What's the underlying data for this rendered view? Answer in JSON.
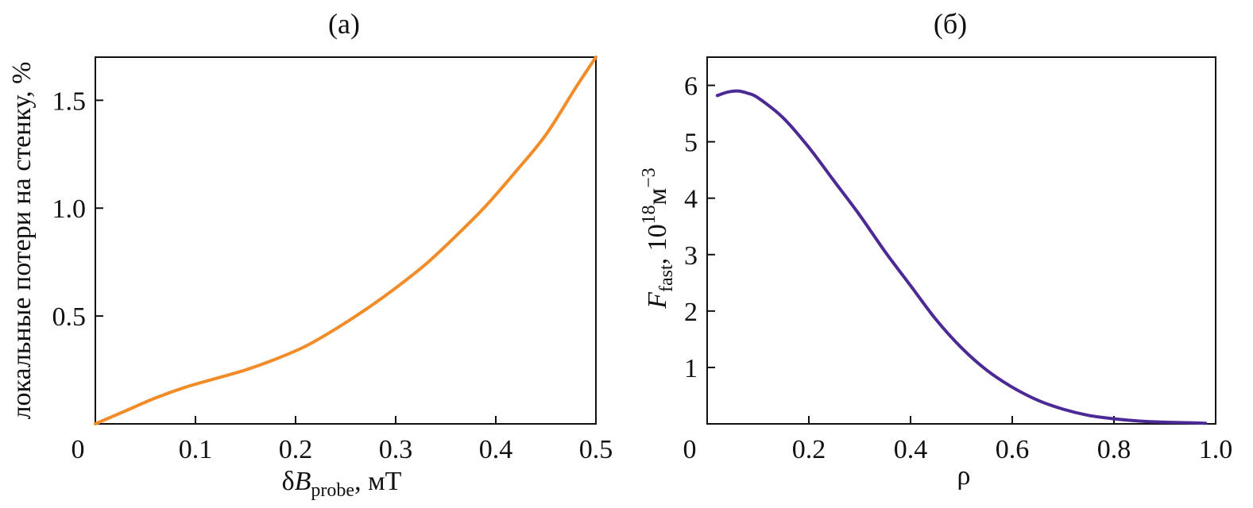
{
  "chart_data": [
    {
      "id": "a",
      "type": "line",
      "title": "(а)",
      "xlabel": {
        "main": "δ",
        "var": "B",
        "sub": "probe",
        "unit": ", мТ"
      },
      "ylabel": "локальные потери на стенку, %",
      "xlim": [
        0,
        0.5
      ],
      "ylim": [
        0,
        1.7
      ],
      "xticks": [
        {
          "v": 0,
          "label": "0"
        },
        {
          "v": 0.1,
          "label": "0.1"
        },
        {
          "v": 0.2,
          "label": "0.2"
        },
        {
          "v": 0.3,
          "label": "0.3"
        },
        {
          "v": 0.4,
          "label": "0.4"
        },
        {
          "v": 0.5,
          "label": "0.5"
        }
      ],
      "yticks": [
        {
          "v": 0.5,
          "label": "0.5"
        },
        {
          "v": 1.0,
          "label": "1.0"
        },
        {
          "v": 1.5,
          "label": "1.5"
        }
      ],
      "series": [
        {
          "name": "losses",
          "color": "#f28c28",
          "x": [
            0,
            0.03,
            0.06,
            0.09,
            0.12,
            0.15,
            0.18,
            0.21,
            0.24,
            0.27,
            0.3,
            0.33,
            0.36,
            0.39,
            0.42,
            0.45,
            0.48,
            0.5
          ],
          "y": [
            0,
            0.06,
            0.12,
            0.17,
            0.21,
            0.25,
            0.3,
            0.36,
            0.44,
            0.53,
            0.63,
            0.74,
            0.87,
            1.01,
            1.17,
            1.34,
            1.56,
            1.7
          ]
        }
      ]
    },
    {
      "id": "b",
      "type": "line",
      "title": "(б)",
      "xlabel": "ρ",
      "ylabel": {
        "var": "F",
        "sub": "fast",
        "unit": ", 10",
        "exp": "18",
        "unit2": "м",
        "exp2": "−3"
      },
      "xlim": [
        0,
        1.0
      ],
      "ylim": [
        0,
        6.5
      ],
      "xticks": [
        {
          "v": 0,
          "label": "0"
        },
        {
          "v": 0.2,
          "label": "0.2"
        },
        {
          "v": 0.4,
          "label": "0.4"
        },
        {
          "v": 0.6,
          "label": "0.6"
        },
        {
          "v": 0.8,
          "label": "0.8"
        },
        {
          "v": 1.0,
          "label": "1.0"
        }
      ],
      "yticks": [
        {
          "v": 1,
          "label": "1"
        },
        {
          "v": 2,
          "label": "2"
        },
        {
          "v": 3,
          "label": "3"
        },
        {
          "v": 4,
          "label": "4"
        },
        {
          "v": 5,
          "label": "5"
        },
        {
          "v": 6,
          "label": "6"
        }
      ],
      "series": [
        {
          "name": "F_fast",
          "color": "#4b2a96",
          "x": [
            0.02,
            0.04,
            0.06,
            0.08,
            0.1,
            0.15,
            0.2,
            0.25,
            0.3,
            0.35,
            0.4,
            0.45,
            0.5,
            0.55,
            0.6,
            0.65,
            0.7,
            0.75,
            0.8,
            0.85,
            0.9,
            0.95,
            0.98
          ],
          "y": [
            5.82,
            5.88,
            5.9,
            5.86,
            5.78,
            5.42,
            4.9,
            4.3,
            3.7,
            3.05,
            2.45,
            1.85,
            1.35,
            0.95,
            0.65,
            0.42,
            0.26,
            0.15,
            0.09,
            0.05,
            0.03,
            0.02,
            0.01
          ]
        }
      ]
    }
  ]
}
